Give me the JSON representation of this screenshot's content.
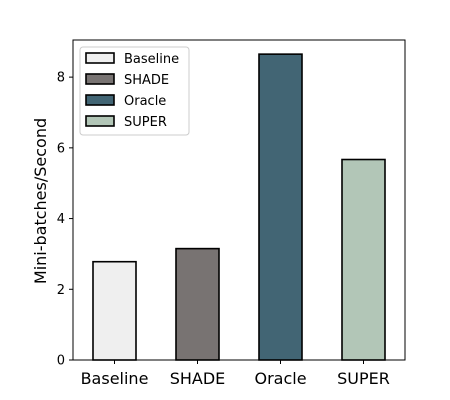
{
  "chart_data": {
    "type": "bar",
    "title": "",
    "xlabel": "",
    "ylabel": "Mini-batches/Second",
    "categories": [
      "Baseline",
      "SHADE",
      "Oracle",
      "SUPER"
    ],
    "values": [
      2.78,
      3.15,
      8.65,
      5.67
    ],
    "colors": [
      "#efefef",
      "#787372",
      "#426574",
      "#b2c6b7"
    ],
    "edge_color": "#000000",
    "ylim": [
      0,
      9.05
    ],
    "yticks": [
      0,
      2,
      4,
      6,
      8
    ],
    "grid": false,
    "legend": {
      "position": "top-left",
      "entries": [
        "Baseline",
        "SHADE",
        "Oracle",
        "SUPER"
      ]
    }
  }
}
